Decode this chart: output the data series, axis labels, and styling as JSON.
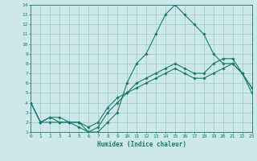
{
  "xlabel": "Humidex (Indice chaleur)",
  "bg_color": "#cce8e8",
  "grid_color": "#aacccc",
  "line_color": "#1a7a6e",
  "hours": [
    0,
    1,
    2,
    3,
    4,
    5,
    6,
    7,
    8,
    9,
    10,
    11,
    12,
    13,
    14,
    15,
    16,
    17,
    18,
    19,
    20,
    21,
    22,
    23
  ],
  "line1": [
    4,
    2,
    2,
    2,
    2,
    2,
    1,
    1,
    2,
    3,
    6,
    8,
    9,
    11,
    13,
    14,
    13,
    12,
    11,
    9,
    8,
    8,
    7,
    5
  ],
  "line2": [
    4,
    2,
    2.5,
    2,
    2,
    1.5,
    1,
    1.5,
    3,
    4,
    5,
    6,
    6.5,
    7,
    7.5,
    8,
    7.5,
    7,
    7,
    8,
    8.5,
    8.5,
    7,
    5.5
  ],
  "line3": [
    4,
    2,
    2.5,
    2.5,
    2,
    2,
    1.5,
    2,
    3.5,
    4.5,
    5,
    5.5,
    6,
    6.5,
    7,
    7.5,
    7,
    6.5,
    6.5,
    7,
    7.5,
    8,
    7,
    5.5
  ],
  "ylim": [
    1,
    14
  ],
  "xlim": [
    0,
    23
  ],
  "yticks": [
    1,
    2,
    3,
    4,
    5,
    6,
    7,
    8,
    9,
    10,
    11,
    12,
    13,
    14
  ],
  "xticks": [
    0,
    1,
    2,
    3,
    4,
    5,
    6,
    7,
    8,
    9,
    10,
    11,
    12,
    13,
    14,
    15,
    16,
    17,
    18,
    19,
    20,
    21,
    22,
    23
  ]
}
